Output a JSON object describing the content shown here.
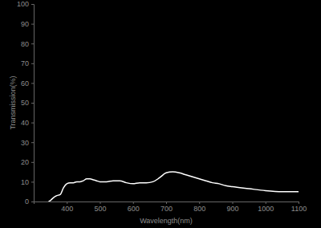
{
  "chart_data": {
    "type": "line",
    "x_label": "Wavelength(nm)",
    "y_label": "Transmission(%)",
    "xlim": [
      300,
      1100
    ],
    "xticks": [
      400,
      500,
      600,
      700,
      800,
      900,
      1000,
      1100
    ],
    "ylim": [
      0,
      100
    ],
    "yticks": [
      0,
      10,
      20,
      30,
      40,
      50,
      60,
      70,
      80,
      90,
      100
    ],
    "grid": false,
    "series": [
      {
        "name": "Transmission",
        "color": "#ffffff",
        "x": [
          345,
          350,
          360,
          370,
          380,
          390,
          400,
          410,
          420,
          430,
          440,
          450,
          460,
          470,
          480,
          490,
          500,
          520,
          540,
          560,
          580,
          600,
          620,
          640,
          660,
          680,
          700,
          720,
          740,
          760,
          780,
          800,
          820,
          840,
          860,
          880,
          900,
          950,
          1000,
          1050,
          1100
        ],
        "values": [
          0,
          0.5,
          2,
          3,
          3.5,
          7,
          9,
          9.5,
          9.5,
          10,
          10,
          10.5,
          11.5,
          11.5,
          11,
          10.5,
          10,
          10,
          10.5,
          10.5,
          9.5,
          9,
          9.5,
          9.5,
          10,
          12,
          14.5,
          15,
          14.5,
          13.5,
          12.5,
          11.5,
          10.5,
          9.5,
          9,
          8,
          7.5,
          6.5,
          5.5,
          5,
          5
        ]
      }
    ]
  }
}
